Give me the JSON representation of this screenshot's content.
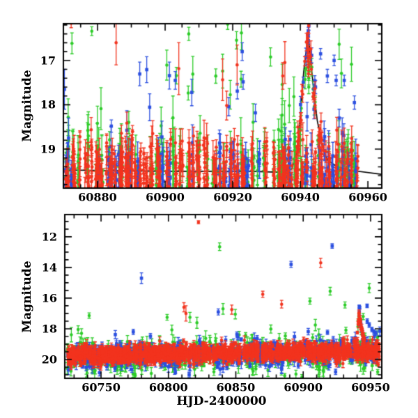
{
  "figure": {
    "xlabel": "HJD-2400000",
    "ylabel": "Magnitude",
    "background": "#ffffff",
    "frame_color": "#000000"
  },
  "palette": {
    "red": "#f2331e",
    "green": "#2ccc28",
    "blue": "#2b4fe0",
    "line": "#000000"
  },
  "chart_data": [
    {
      "panel": "top",
      "type": "scatter",
      "title": "",
      "xlabel": "",
      "ylabel": "Magnitude",
      "y_axis_inverted": true,
      "xlim": [
        60869.9,
        60964.1
      ],
      "ylim": [
        16.17,
        19.88
      ],
      "x_ticks": [
        60880,
        60900,
        60920,
        60940,
        60960
      ],
      "x_minor_step": 5,
      "y_ticks": [
        17,
        18,
        19
      ],
      "y_minor_step": 0.2,
      "grid": false,
      "legend": false,
      "model_line": {
        "draw": true,
        "points": [
          [
            60869.9,
            19.47
          ],
          [
            60900,
            19.5
          ],
          [
            60925,
            19.5
          ],
          [
            60933,
            19.52
          ],
          [
            60937.5,
            19.45
          ],
          [
            60939,
            19.05
          ],
          [
            60940,
            18.25
          ],
          [
            60941,
            17.25
          ],
          [
            60942,
            16.6
          ],
          [
            60942.4,
            16.45
          ],
          [
            60943,
            16.95
          ],
          [
            60944,
            17.7
          ],
          [
            60945,
            18.35
          ],
          [
            60946.5,
            18.95
          ],
          [
            60948,
            19.25
          ],
          [
            60951,
            19.4
          ],
          [
            60955,
            19.48
          ],
          [
            60964.1,
            19.57
          ]
        ]
      },
      "series": [
        {
          "name": "green",
          "marker": "circle",
          "color": "green",
          "seed": 7301,
          "nights": {
            "x0": 60870,
            "x1": 60957.5,
            "prob": 0.55,
            "nmin": 3,
            "nmax": 8,
            "gen": "pile",
            "base": 19.95,
            "spread": 0.55,
            "lift_prob": 0.3,
            "lift_max": 1.1,
            "errmin": 0.18,
            "errmax": 0.6
          },
          "bright": {
            "n": 20,
            "mag_lo": 16.35,
            "mag_hi": 18.3,
            "err_lo": 0.15,
            "err_hi": 0.5
          },
          "peak_trace": {
            "n": 14,
            "x0": 60939.5,
            "x1": 60945.5,
            "sigma": 0.25,
            "offset": 0.45
          },
          "outliers": [
            [
              60878.3,
              16.34,
              0.1
            ],
            [
              60918.5,
              16.18,
              0.12
            ],
            [
              60942.5,
              17.4,
              0.15
            ],
            [
              60942.5,
              17.6,
              0.15
            ],
            [
              60943.4,
              17.15,
              0.2
            ],
            [
              60907,
              16.4,
              0.15
            ]
          ]
        },
        {
          "name": "blue",
          "marker": "square",
          "color": "blue",
          "seed": 9902,
          "nights": {
            "x0": 60870,
            "x1": 60957.5,
            "prob": 0.6,
            "nmin": 3,
            "nmax": 9,
            "gen": "pile",
            "base": 19.95,
            "spread": 0.5,
            "lift_prob": 0.22,
            "lift_max": 0.9,
            "errmin": 0.12,
            "errmax": 0.45
          },
          "bright": {
            "n": 8,
            "mag_lo": 17.2,
            "mag_hi": 18.25,
            "err_lo": 0.12,
            "err_hi": 0.35
          },
          "peak_trace": {
            "n": 10,
            "x0": 60939.5,
            "x1": 60944.5,
            "sigma": 0.2,
            "offset": 0
          },
          "outliers": [
            [
              60870.2,
              17.65,
              0.45
            ],
            [
              60903,
              17.45,
              0.2
            ],
            [
              60922.8,
              16.8,
              0.2
            ],
            [
              60942.35,
              16.33,
              0.08
            ],
            [
              60942.35,
              16.45,
              0.08
            ],
            [
              60942.4,
              16.55,
              0.08
            ],
            [
              60944.5,
              17.6,
              0.15
            ],
            [
              60946,
              16.85,
              0.12
            ],
            [
              60948,
              17.35,
              0.15
            ],
            [
              60950,
              17.0,
              0.12
            ],
            [
              60950.6,
              17.45,
              0.12
            ],
            [
              60953,
              17.45,
              0.12
            ],
            [
              60956,
              17.95,
              0.15
            ],
            [
              60951.5,
              18.3,
              0.2
            ]
          ]
        },
        {
          "name": "red",
          "marker": "circle",
          "color": "red",
          "seed": 4417,
          "nights": {
            "x0": 60870,
            "x1": 60957.5,
            "prob": 0.8,
            "nmin": 4,
            "nmax": 13,
            "gen": "pile",
            "base": 19.95,
            "spread": 0.5,
            "lift_prob": 0.22,
            "lift_max": 0.9,
            "errmin": 0.1,
            "errmax": 0.4
          },
          "bright": {
            "n": 3,
            "mag_lo": 16.9,
            "mag_hi": 17.6,
            "err_lo": 0.3,
            "err_hi": 0.6
          },
          "peak_trace": {
            "n": 42,
            "x0": 60939,
            "x1": 60946.8,
            "sigma": 0.18,
            "offset": 0
          },
          "outliers": [
            [
              60872.2,
              16.16,
              0.1
            ],
            [
              60885.5,
              16.6,
              0.5
            ],
            [
              60921.3,
              17.1,
              0.45
            ],
            [
              60934.8,
              17.35,
              0.3
            ],
            [
              60942.3,
              16.78,
              0.07
            ],
            [
              60942.3,
              16.9,
              0.07
            ],
            [
              60942.3,
              17.02,
              0.07
            ],
            [
              60942.35,
              17.15,
              0.07
            ],
            [
              60942.4,
              17.3,
              0.07
            ]
          ]
        }
      ]
    },
    {
      "panel": "bottom",
      "type": "scatter",
      "title": "",
      "xlabel": "HJD-2400000",
      "ylabel": "Magnitude",
      "y_axis_inverted": true,
      "xlim": [
        60723.1,
        60958.3
      ],
      "ylim": [
        10.55,
        21.23
      ],
      "x_ticks": [
        60750,
        60800,
        60850,
        60900,
        60950
      ],
      "x_minor_step": 10,
      "y_ticks": [
        12,
        14,
        16,
        18,
        20
      ],
      "y_minor_step": 0.5,
      "grid": false,
      "legend": false,
      "model_line": {
        "draw": false,
        "points": [
          [
            60723.1,
            19.75
          ],
          [
            60938,
            19.45
          ],
          [
            60940,
            18.3
          ],
          [
            60941.5,
            17.0
          ],
          [
            60943,
            17.9
          ],
          [
            60946,
            19.1
          ],
          [
            60950,
            19.4
          ],
          [
            60958.3,
            19.45
          ]
        ]
      },
      "series": [
        {
          "name": "green",
          "marker": "circle",
          "color": "green",
          "seed": 5150,
          "nights": {
            "x0": 60725,
            "x1": 60957,
            "prob": 0.5,
            "nmin": 2,
            "nmax": 6,
            "gen": "band",
            "trend": [
              19.9,
              19.6
            ],
            "sigma": 0.52,
            "errmin": 0.15,
            "errmax": 0.5
          },
          "bright": {
            "n": 10,
            "mag_lo": 16.9,
            "mag_hi": 18.3,
            "err_lo": 0.15,
            "err_hi": 0.4
          },
          "peak_trace": {
            "n": 5,
            "x0": 60940,
            "x1": 60945,
            "sigma": 0.3,
            "offset": 0.3
          },
          "outliers": [
            [
              60838,
              12.65,
              0.25
            ],
            [
              60949,
              15.35,
              0.3
            ],
            [
              60905,
              16.2,
              0.2
            ],
            [
              60931,
              16.45,
              0.2
            ],
            [
              60840.5,
              16.7,
              0.35
            ],
            [
              60920,
              15.55,
              0.25
            ],
            [
              60733,
              18.05,
              0.25
            ],
            [
              60735.5,
              18.3,
              0.3
            ],
            [
              60944.5,
              17.2,
              0.2
            ]
          ]
        },
        {
          "name": "blue",
          "marker": "square",
          "color": "blue",
          "seed": 8282,
          "nights": {
            "x0": 60725,
            "x1": 60957,
            "prob": 0.55,
            "nmin": 2,
            "nmax": 7,
            "gen": "band",
            "trend": [
              19.8,
              19.5
            ],
            "sigma": 0.42,
            "errmin": 0.1,
            "errmax": 0.4
          },
          "bright": {
            "n": 8,
            "mag_lo": 17.6,
            "mag_hi": 18.6,
            "err_lo": 0.12,
            "err_hi": 0.3
          },
          "peak_trace": {
            "n": 4,
            "x0": 60940.5,
            "x1": 60944,
            "sigma": 0.2,
            "offset": 0
          },
          "outliers": [
            [
              60780,
              14.7,
              0.35
            ],
            [
              60891,
              13.8,
              0.2
            ],
            [
              60921.5,
              12.6,
              0.15
            ],
            [
              60837,
              16.9,
              0.2
            ],
            [
              60941.6,
              16.55,
              0.1
            ],
            [
              60941.9,
              16.62,
              0.1
            ],
            [
              60947.4,
              16.5,
              0.12
            ],
            [
              60947.5,
              17.5,
              0.15
            ],
            [
              60949,
              17.75,
              0.15
            ],
            [
              60951,
              18.05,
              0.15
            ],
            [
              60952.5,
              18.2,
              0.15
            ],
            [
              60954,
              18.3,
              0.15
            ]
          ]
        },
        {
          "name": "red",
          "marker": "circle",
          "color": "red",
          "seed": 1234,
          "nights": {
            "x0": 60725,
            "x1": 60957,
            "prob": 0.92,
            "nmin": 4,
            "nmax": 13,
            "gen": "band",
            "trend": [
              19.75,
              19.42
            ],
            "sigma": 0.28,
            "errmin": 0.08,
            "errmax": 0.3
          },
          "bright": {
            "n": 0,
            "mag_lo": 17,
            "mag_hi": 18,
            "err_lo": 0.2,
            "err_hi": 0.4
          },
          "peak_trace": {
            "n": 26,
            "x0": 60939.5,
            "x1": 60945.5,
            "sigma": 0.15,
            "offset": 0
          },
          "outliers": [
            [
              60822.3,
              11.05,
              0.1
            ],
            [
              60913,
              13.7,
              0.3
            ],
            [
              60870,
              15.75,
              0.2
            ],
            [
              60811.5,
              16.6,
              0.3
            ],
            [
              60813,
              17.0,
              0.5
            ],
            [
              60847,
              16.75,
              0.3
            ],
            [
              60884,
              16.4,
              0.25
            ],
            [
              60941.4,
              17.05,
              0.15
            ],
            [
              60941.6,
              17.3,
              0.15
            ],
            [
              60941.3,
              17.55,
              0.15
            ]
          ]
        }
      ]
    }
  ]
}
